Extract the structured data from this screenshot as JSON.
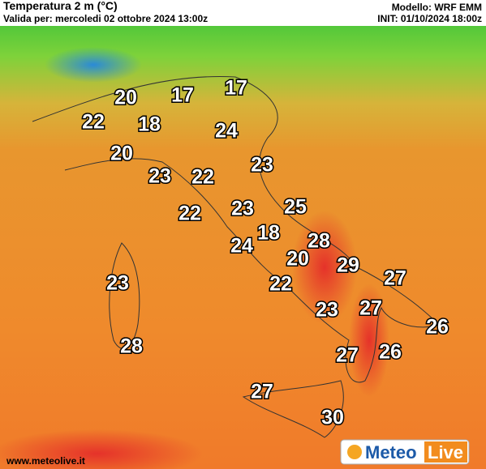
{
  "header": {
    "title": "Temperatura 2 m (°C)",
    "subtitle": "Valida per: mercoledi 02 ottobre 2024 13:00z",
    "model": "Modello: WRF EMM",
    "init": "INIT: 01/10/2024 18:00z"
  },
  "labels": [
    "20",
    "17",
    "17",
    "22",
    "18",
    "24",
    "20",
    "23",
    "22",
    "23",
    "22",
    "23",
    "25",
    "18",
    "24",
    "28",
    "20",
    "29",
    "27",
    "23",
    "22",
    "23",
    "27",
    "26",
    "28",
    "27",
    "26",
    "27",
    "30"
  ],
  "footer": {
    "url": "www.meteolive.it",
    "logo_left": "Meteo",
    "logo_right": "Live"
  }
}
